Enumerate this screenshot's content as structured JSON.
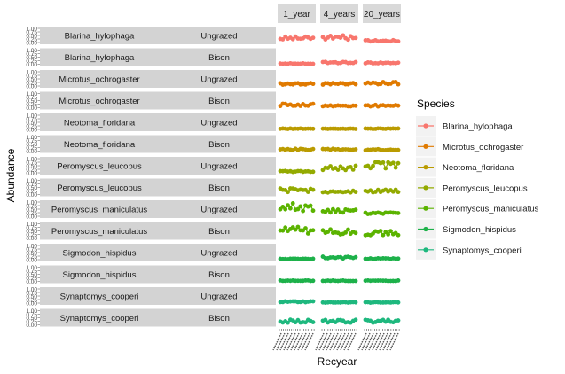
{
  "chart_data": {
    "type": "line",
    "xlabel": "Recyear",
    "ylabel": "Abundance",
    "ylim": [
      0,
      1
    ],
    "y_ticks": [
      "0.00",
      "0.25",
      "0.50",
      "0.75",
      "1.00"
    ],
    "facet_columns": [
      "1_year",
      "4_years",
      "20_years"
    ],
    "facet_rows": [
      {
        "species": "Blarina_hylophaga",
        "treatment": "Ungrazed"
      },
      {
        "species": "Blarina_hylophaga",
        "treatment": "Bison"
      },
      {
        "species": "Microtus_ochrogaster",
        "treatment": "Ungrazed"
      },
      {
        "species": "Microtus_ochrogaster",
        "treatment": "Bison"
      },
      {
        "species": "Neotoma_floridana",
        "treatment": "Ungrazed"
      },
      {
        "species": "Neotoma_floridana",
        "treatment": "Bison"
      },
      {
        "species": "Peromyscus_leucopus",
        "treatment": "Ungrazed"
      },
      {
        "species": "Peromyscus_leucopus",
        "treatment": "Bison"
      },
      {
        "species": "Peromyscus_maniculatus",
        "treatment": "Ungrazed"
      },
      {
        "species": "Peromyscus_maniculatus",
        "treatment": "Bison"
      },
      {
        "species": "Sigmodon_hispidus",
        "treatment": "Ungrazed"
      },
      {
        "species": "Sigmodon_hispidus",
        "treatment": "Bison"
      },
      {
        "species": "Synaptomys_cooperi",
        "treatment": "Ungrazed"
      },
      {
        "species": "Synaptomys_cooperi",
        "treatment": "Bison"
      }
    ],
    "series": [
      {
        "name": "Blarina_hylophaga",
        "color": "#F8766D",
        "levels": [
          [
            0.3,
            0.35,
            0.12
          ],
          [
            0.05,
            0.12,
            0.1
          ]
        ]
      },
      {
        "name": "Microtus_ochrogaster",
        "color": "#E07A00",
        "levels": [
          [
            0.15,
            0.15,
            0.2
          ],
          [
            0.2,
            0.12,
            0.15
          ]
        ]
      },
      {
        "name": "Neotoma_floridana",
        "color": "#BA9B00",
        "levels": [
          [
            0.05,
            0.05,
            0.05
          ],
          [
            0.12,
            0.12,
            0.1
          ]
        ]
      },
      {
        "name": "Peromyscus_leucopus",
        "color": "#93AA00",
        "levels": [
          [
            0.1,
            0.35,
            0.55
          ],
          [
            0.3,
            0.2,
            0.25
          ]
        ]
      },
      {
        "name": "Peromyscus_maniculatus",
        "color": "#5BB300",
        "levels": [
          [
            0.65,
            0.35,
            0.2
          ],
          [
            0.55,
            0.45,
            0.35
          ]
        ]
      },
      {
        "name": "Sigmodon_hispidus",
        "color": "#1DB14A",
        "levels": [
          [
            0.05,
            0.15,
            0.08
          ],
          [
            0.05,
            0.05,
            0.05
          ]
        ]
      },
      {
        "name": "Synaptomys_cooperi",
        "color": "#1EB87E",
        "levels": [
          [
            0.1,
            0.05,
            0.05
          ],
          [
            0.25,
            0.25,
            0.25
          ]
        ]
      }
    ],
    "legend": {
      "title": "Species",
      "position": "right"
    }
  }
}
